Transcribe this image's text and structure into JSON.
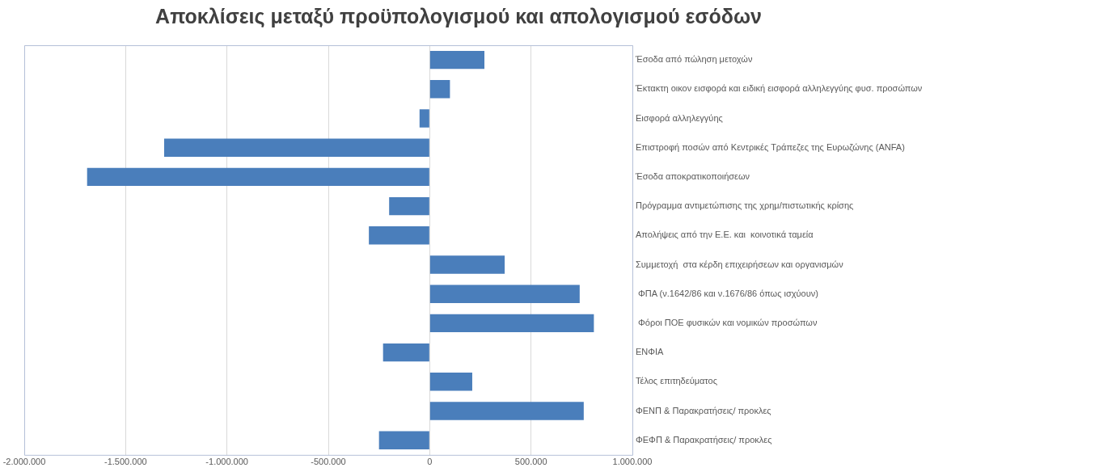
{
  "chart_data": {
    "type": "bar",
    "orientation": "horizontal",
    "title": "Αποκλίσεις μεταξύ προϋπολογισμού και απολογισμού εσόδων",
    "categories": [
      "Έσοδα από πώληση μετοχών",
      "Έκτακτη οικον εισφορά και ειδική εισφορά αλληλεγγύης φυσ. προσώπων",
      "Εισφορά αλληλεγγύης",
      "Επιστροφή ποσών από Κεντρικές Τράπεζες της Ευρωζώνης (ANFA)",
      "Έσοδα αποκρατικοποιήσεων",
      "Πρόγραμμα αντιμετώπισης της χρημ/πιστωτικής κρίσης",
      "Απολήψεις από την Ε.Ε. και  κοινοτικά ταμεία",
      "Συμμετοχή  στα κέρδη επιχειρήσεων και οργανισμών",
      " ΦΠΑ (ν.1642/86 και ν.1676/86 όπως ισχύουν)",
      " Φόροι ΠΟΕ φυσικών και νομικών προσώπων",
      "ΕΝΦΙΑ",
      "Τέλος επιτηδεύματος",
      "ΦΕΝΠ & Παρακρατήσεις/ προκλες",
      "ΦΕΦΠ & Παρακρατήσεις/ προκλες"
    ],
    "values": [
      270000,
      100000,
      -50000,
      -1310000,
      -1690000,
      -200000,
      -300000,
      370000,
      740000,
      810000,
      -230000,
      210000,
      760000,
      -250000
    ],
    "color": "#4a7ebb",
    "xlim": [
      -2000000,
      1000000
    ],
    "xticks": [
      {
        "value": -2000000,
        "label": "-2.000.000"
      },
      {
        "value": -1500000,
        "label": "-1.500.000"
      },
      {
        "value": -1000000,
        "label": "-1.000.000"
      },
      {
        "value": -500000,
        "label": "-500.000"
      },
      {
        "value": 0,
        "label": "0"
      },
      {
        "value": 500000,
        "label": "500.000"
      },
      {
        "value": 1000000,
        "label": "1.000.000"
      }
    ],
    "grid": "x",
    "legend": false
  }
}
